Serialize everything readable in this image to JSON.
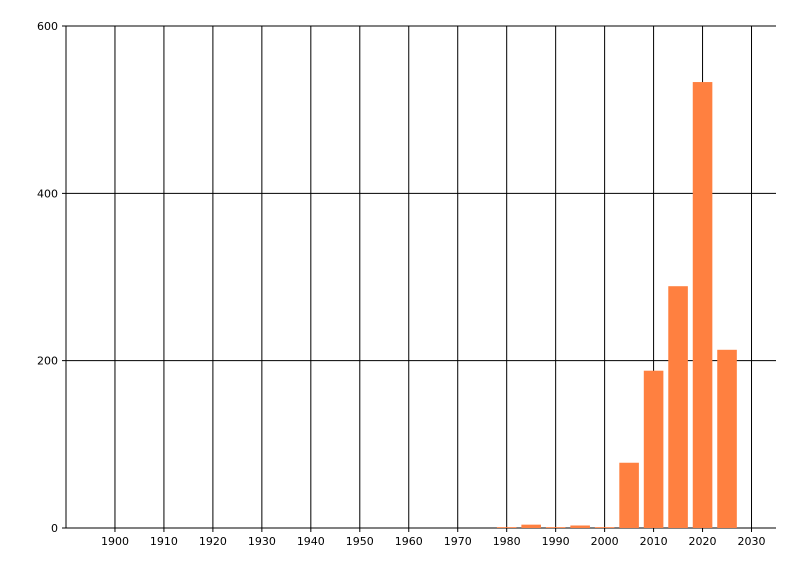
{
  "chart_data": {
    "type": "bar",
    "title": "",
    "xlabel": "",
    "ylabel": "",
    "x": [
      1980,
      1985,
      1990,
      1995,
      2000,
      2005,
      2010,
      2015,
      2020,
      2025
    ],
    "values": [
      1,
      4,
      1,
      3,
      1,
      78,
      188,
      289,
      533,
      213
    ],
    "bar_width_years": 4,
    "xlim": [
      1890,
      2035
    ],
    "ylim": [
      0,
      600
    ],
    "xticks": [
      1900,
      1910,
      1920,
      1930,
      1940,
      1950,
      1960,
      1970,
      1980,
      1990,
      2000,
      2010,
      2020,
      2030
    ],
    "yticks": [
      0,
      200,
      400,
      600
    ],
    "grid": true,
    "legend": "none",
    "bar_color": "#FF8040"
  }
}
